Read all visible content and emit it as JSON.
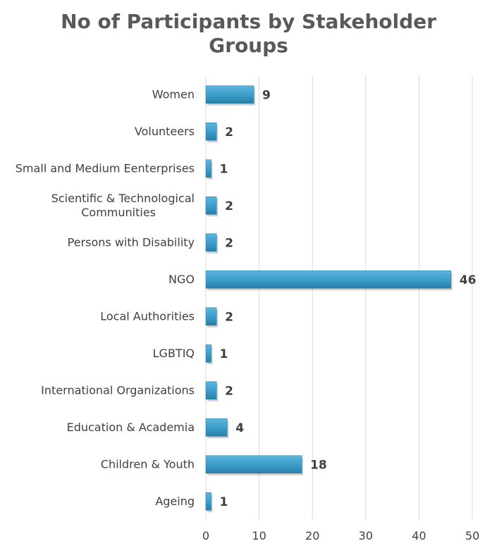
{
  "chart_data": {
    "type": "bar",
    "orientation": "horizontal",
    "title_line1": "No of Participants by Stakeholder",
    "title_line2": "Groups",
    "xlabel": "",
    "ylabel": "",
    "categories": [
      "Women",
      "Volunteers",
      "Small and Medium Eenterprises",
      "Scientific & Technological Communities",
      "Persons with Disability",
      "NGO",
      "Local Authorities",
      "LGBTIQ",
      "International Organizations",
      "Education & Academia",
      "Children & Youth",
      "Ageing"
    ],
    "values": [
      9,
      2,
      1,
      2,
      2,
      46,
      2,
      1,
      2,
      4,
      18,
      1
    ],
    "xlim": [
      0,
      50
    ],
    "xticks": [
      0,
      10,
      20,
      30,
      40,
      50
    ],
    "grid": "vertical",
    "legend": "none",
    "bar_color": "#3A9CC8",
    "bar_color_dark": "#2A7FA8"
  }
}
